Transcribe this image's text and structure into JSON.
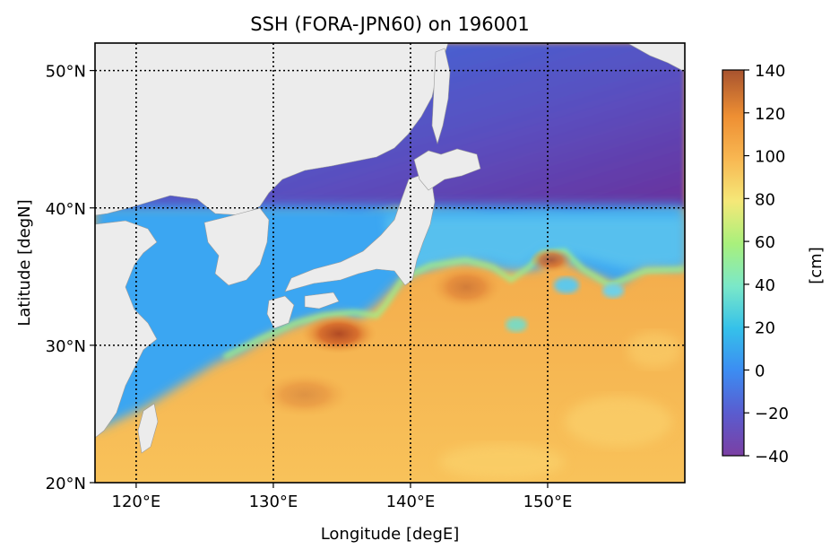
{
  "chart_data": {
    "type": "heatmap",
    "title": "SSH (FORA-JPN60) on 196001",
    "xlabel": "Longitude [degE]",
    "ylabel": "Latitude [degN]",
    "xlim": [
      117,
      160
    ],
    "ylim": [
      20,
      52
    ],
    "grid": true,
    "x_ticks": [
      120,
      130,
      140,
      150
    ],
    "x_tick_labels": [
      "120°E",
      "130°E",
      "140°E",
      "150°E"
    ],
    "y_ticks": [
      20,
      30,
      40,
      50
    ],
    "y_tick_labels": [
      "20°N",
      "30°N",
      "40°N",
      "50°N"
    ],
    "colorbar": {
      "label": "[cm]",
      "range": [
        -40,
        140
      ],
      "ticks": [
        -40,
        -20,
        0,
        20,
        40,
        60,
        80,
        100,
        120,
        140
      ],
      "tick_labels": [
        "−40",
        "−20",
        "0",
        "20",
        "40",
        "60",
        "80",
        "100",
        "120",
        "140"
      ],
      "colormap": "turbo",
      "placement": "right"
    },
    "land_color": "#ececec",
    "field_features": [
      {
        "region": "subarctic gyre, Okhotsk & NW Pacific north of ~42°N",
        "ssh_cm": -20
      },
      {
        "region": "Japan Sea",
        "ssh_cm": 5
      },
      {
        "region": "Yellow Sea / East China Sea shelf",
        "ssh_cm": 15
      },
      {
        "region": "Kuroshio south of Japan (max near 135°E, 31°N)",
        "ssh_cm": 125
      },
      {
        "region": "subtropical gyre south of 33°N",
        "ssh_cm": 100
      },
      {
        "region": "Kuroshio Extension warm eddy near 150°E, 37°N",
        "ssh_cm": 115
      },
      {
        "region": "cold eddies near 152°E–155°E, 35°N",
        "ssh_cm": 30
      }
    ]
  }
}
